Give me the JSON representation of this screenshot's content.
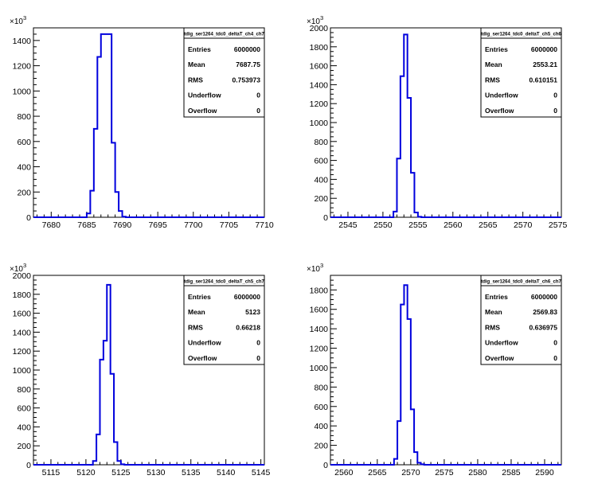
{
  "chart_data": [
    {
      "type": "bar",
      "stats_title": "tdig_ser1264_tdc0_deltaT_ch4_ch7",
      "y_exponent": "3",
      "xlim": [
        7677.5,
        7710
      ],
      "ylim": [
        0,
        1500
      ],
      "x_ticks": [
        7680,
        7685,
        7690,
        7695,
        7700,
        7705,
        7710
      ],
      "y_ticks": [
        0,
        200,
        400,
        600,
        800,
        1000,
        1200,
        1400
      ],
      "bin_width": 0.5,
      "bins": [
        {
          "x": 7685.0,
          "y": 30
        },
        {
          "x": 7685.5,
          "y": 210
        },
        {
          "x": 7686.0,
          "y": 700
        },
        {
          "x": 7686.5,
          "y": 1270
        },
        {
          "x": 7687.0,
          "y": 1450
        },
        {
          "x": 7687.5,
          "y": 1450
        },
        {
          "x": 7688.0,
          "y": 1450
        },
        {
          "x": 7688.5,
          "y": 590
        },
        {
          "x": 7689.0,
          "y": 200
        },
        {
          "x": 7689.5,
          "y": 50
        },
        {
          "x": 7690.0,
          "y": 5
        }
      ],
      "stats": [
        {
          "label": "Entries",
          "value": "6000000"
        },
        {
          "label": "Mean",
          "value": "7687.75"
        },
        {
          "label": "RMS",
          "value": "0.753973"
        },
        {
          "label": "Underflow",
          "value": "0"
        },
        {
          "label": "Overflow",
          "value": "0"
        }
      ]
    },
    {
      "type": "bar",
      "stats_title": "tdig_ser1264_tdc0_deltaT_ch5_ch6",
      "y_exponent": "3",
      "xlim": [
        2542.5,
        2575.5
      ],
      "ylim": [
        0,
        2000
      ],
      "x_ticks": [
        2545,
        2550,
        2555,
        2560,
        2565,
        2570,
        2575
      ],
      "y_ticks": [
        0,
        200,
        400,
        600,
        800,
        1000,
        1200,
        1400,
        1600,
        1800,
        2000
      ],
      "bin_width": 0.5,
      "bins": [
        {
          "x": 2551.5,
          "y": 60
        },
        {
          "x": 2552.0,
          "y": 620
        },
        {
          "x": 2552.5,
          "y": 1490
        },
        {
          "x": 2553.0,
          "y": 1930
        },
        {
          "x": 2553.5,
          "y": 1260
        },
        {
          "x": 2554.0,
          "y": 470
        },
        {
          "x": 2554.5,
          "y": 50
        },
        {
          "x": 2555.0,
          "y": 5
        }
      ],
      "stats": [
        {
          "label": "Entries",
          "value": "6000000"
        },
        {
          "label": "Mean",
          "value": "2553.21"
        },
        {
          "label": "RMS",
          "value": "0.610151"
        },
        {
          "label": "Underflow",
          "value": "0"
        },
        {
          "label": "Overflow",
          "value": "0"
        }
      ]
    },
    {
      "type": "bar",
      "stats_title": "tdig_ser1264_tdc0_deltaT_ch5_ch7",
      "y_exponent": "3",
      "xlim": [
        5112.5,
        5145.5
      ],
      "ylim": [
        0,
        2000
      ],
      "x_ticks": [
        5115,
        5120,
        5125,
        5130,
        5135,
        5140,
        5145
      ],
      "y_ticks": [
        0,
        200,
        400,
        600,
        800,
        1000,
        1200,
        1400,
        1600,
        1800,
        2000
      ],
      "bin_width": 0.5,
      "bins": [
        {
          "x": 5121.0,
          "y": 40
        },
        {
          "x": 5121.5,
          "y": 320
        },
        {
          "x": 5122.0,
          "y": 1110
        },
        {
          "x": 5122.5,
          "y": 1310
        },
        {
          "x": 5123.0,
          "y": 1900
        },
        {
          "x": 5123.5,
          "y": 960
        },
        {
          "x": 5124.0,
          "y": 240
        },
        {
          "x": 5124.5,
          "y": 40
        },
        {
          "x": 5125.0,
          "y": 5
        }
      ],
      "stats": [
        {
          "label": "Entries",
          "value": "6000000"
        },
        {
          "label": "Mean",
          "value": "5123"
        },
        {
          "label": "RMS",
          "value": "0.66218"
        },
        {
          "label": "Underflow",
          "value": "0"
        },
        {
          "label": "Overflow",
          "value": "0"
        }
      ]
    },
    {
      "type": "bar",
      "stats_title": "tdig_ser1264_tdc0_deltaT_ch6_ch7",
      "y_exponent": "3",
      "xlim": [
        2558,
        2592.5
      ],
      "ylim": [
        0,
        1950
      ],
      "x_ticks": [
        2560,
        2565,
        2570,
        2575,
        2580,
        2585,
        2590
      ],
      "y_ticks": [
        0,
        200,
        400,
        600,
        800,
        1000,
        1200,
        1400,
        1600,
        1800
      ],
      "bin_width": 0.5,
      "bins": [
        {
          "x": 2567.5,
          "y": 60
        },
        {
          "x": 2568.0,
          "y": 450
        },
        {
          "x": 2568.5,
          "y": 1650
        },
        {
          "x": 2569.0,
          "y": 1850
        },
        {
          "x": 2569.5,
          "y": 1500
        },
        {
          "x": 2570.0,
          "y": 570
        },
        {
          "x": 2570.5,
          "y": 130
        },
        {
          "x": 2571.0,
          "y": 20
        },
        {
          "x": 2571.5,
          "y": 5
        }
      ],
      "stats": [
        {
          "label": "Entries",
          "value": "6000000"
        },
        {
          "label": "Mean",
          "value": "2569.83"
        },
        {
          "label": "RMS",
          "value": "0.636975"
        },
        {
          "label": "Underflow",
          "value": "0"
        },
        {
          "label": "Overflow",
          "value": "0"
        }
      ]
    }
  ],
  "colors": {
    "histogram_line": "#0000dd",
    "axis": "#000000",
    "background": "#ffffff"
  }
}
